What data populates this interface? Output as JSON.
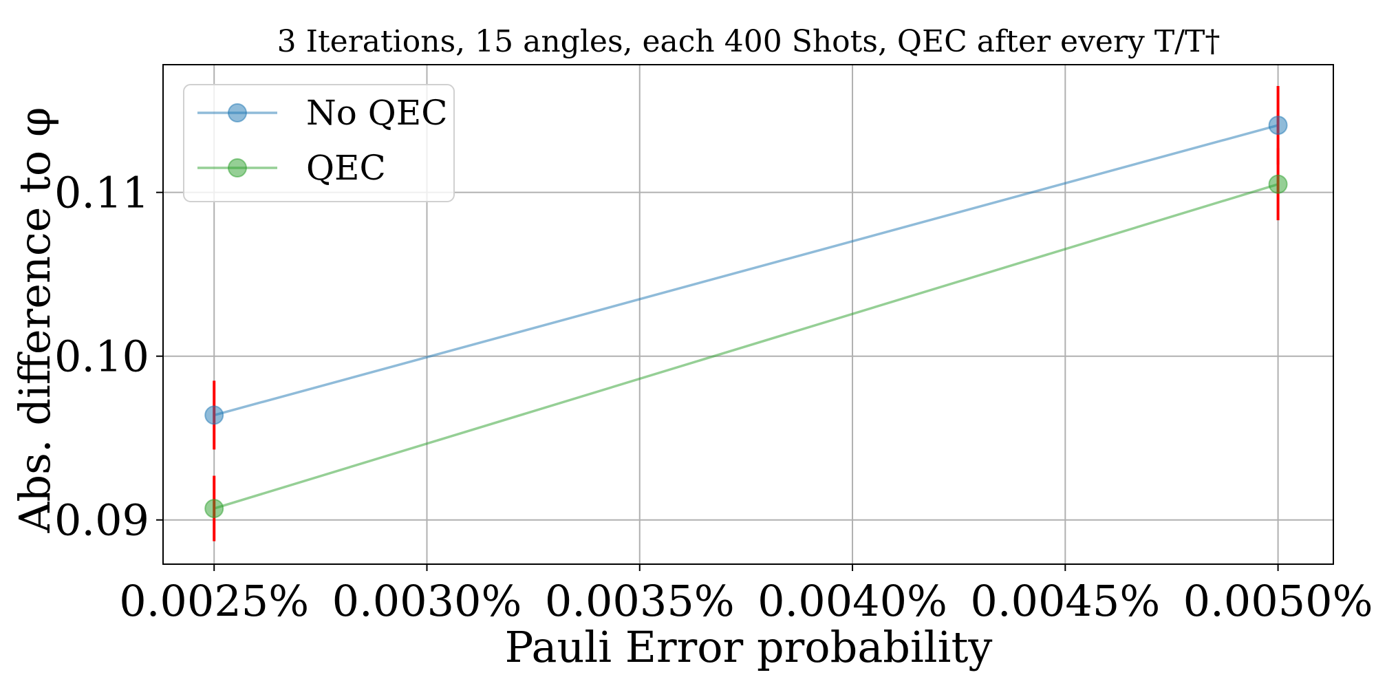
{
  "chart_data": {
    "type": "line",
    "title": "3 Iterations, 15 angles, each 400 Shots, QEC after every T/T†",
    "xlabel": "Pauli Error probability",
    "ylabel": "Abs. difference to φ",
    "x": [
      0.0025,
      0.005
    ],
    "xlim": [
      0.00238,
      0.00513
    ],
    "ylim": [
      0.0873,
      0.1178
    ],
    "xticks": [
      0.0025,
      0.003,
      0.0035,
      0.004,
      0.0045,
      0.005
    ],
    "xtick_labels": [
      "0.0025%",
      "0.0030%",
      "0.0035%",
      "0.0040%",
      "0.0045%",
      "0.0050%"
    ],
    "yticks": [
      0.09,
      0.1,
      0.11
    ],
    "ytick_labels": [
      "0.09",
      "0.10",
      "0.11"
    ],
    "grid": true,
    "legend_position": "top-left",
    "series": [
      {
        "name": "No QEC",
        "values": [
          0.0964,
          0.1141
        ],
        "error": [
          0.0021,
          0.0024
        ],
        "color": "#1f77b4"
      },
      {
        "name": "QEC",
        "values": [
          0.0907,
          0.1105
        ],
        "error": [
          0.002,
          0.0022
        ],
        "color": "#2ca02c"
      }
    ],
    "errorbar_color": "#ff0000"
  }
}
